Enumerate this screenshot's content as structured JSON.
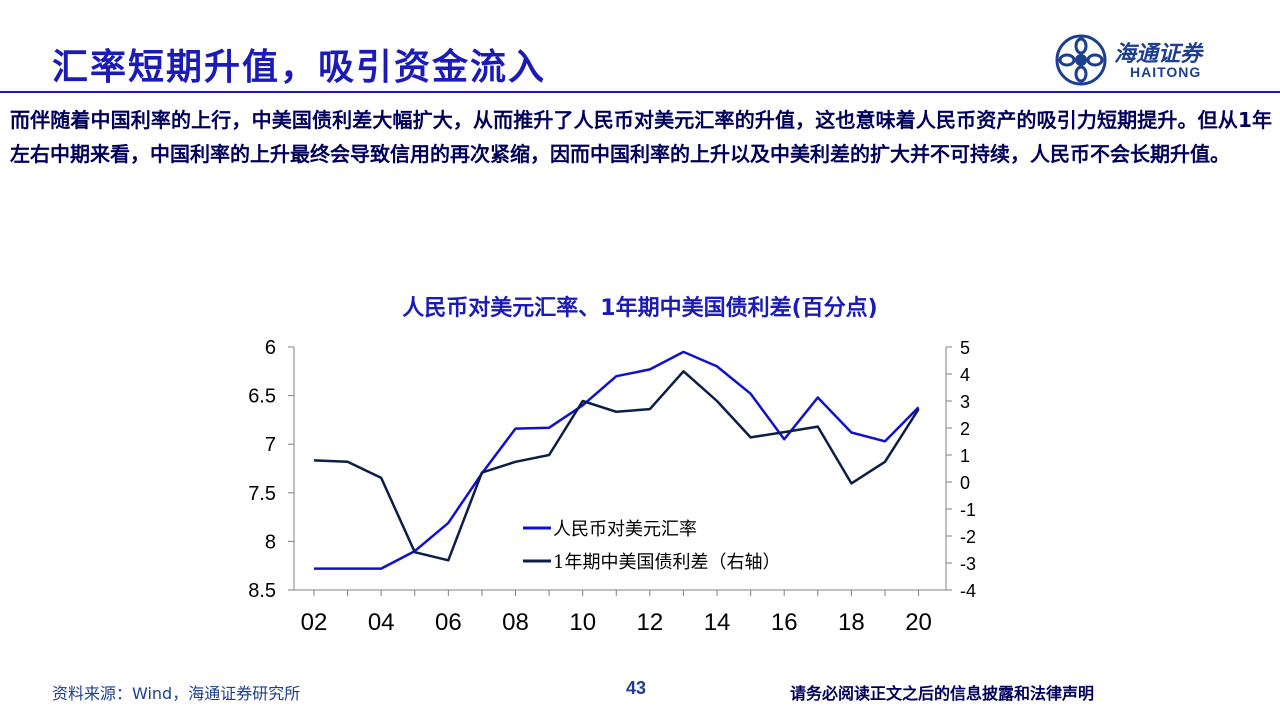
{
  "header": {
    "title": "汇率短期升值，吸引资金流入",
    "logo_cn": "海通证券",
    "logo_en": "HAITONG"
  },
  "body_text": "而伴随着中国利率的上行，中美国债利差大幅扩大，从而推升了人民币对美元汇率的升值，这也意味着人民币资产的吸引力短期提升。但从1年左右中期来看，中国利率的上升最终会导致信用的再次紧缩，因而中国利率的上升以及中美利差的扩大并不可持续，人民币不会长期升值。",
  "chart_data": {
    "type": "line",
    "title": "人民币对美元汇率、1年期中美国债利差(百分点)",
    "x_tick_labels": [
      "02",
      "04",
      "06",
      "08",
      "10",
      "12",
      "14",
      "16",
      "18",
      "20"
    ],
    "x_range": [
      2002,
      2020.4
    ],
    "y_left": {
      "range": [
        8.5,
        6
      ],
      "inverted": true,
      "ticks": [
        "6",
        "6.5",
        "7",
        "7.5",
        "8",
        "8.5"
      ]
    },
    "y_right": {
      "range": [
        -4,
        5
      ],
      "ticks": [
        "5",
        "4",
        "3",
        "2",
        "1",
        "0",
        "-1",
        "-2",
        "-3",
        "-4"
      ]
    },
    "grid": false,
    "legend_position": "bottom-right inside plot",
    "series": [
      {
        "name": "人民币对美元汇率",
        "axis": "left",
        "color": "#1010d0",
        "x": [
          2002,
          2003,
          2004,
          2005,
          2006,
          2007,
          2008,
          2009,
          2010,
          2011,
          2012,
          2013,
          2014,
          2015,
          2016,
          2017,
          2018,
          2019,
          2020
        ],
        "values": [
          8.28,
          8.28,
          8.28,
          8.1,
          7.81,
          7.3,
          6.84,
          6.83,
          6.6,
          6.3,
          6.23,
          6.05,
          6.2,
          6.48,
          6.95,
          6.52,
          6.88,
          6.97,
          6.62
        ]
      },
      {
        "name": "1年期中美国债利差（右轴）",
        "axis": "right",
        "color": "#0b1e45",
        "x": [
          2002,
          2003,
          2004,
          2005,
          2006,
          2007,
          2008,
          2009,
          2010,
          2011,
          2012,
          2013,
          2014,
          2015,
          2016,
          2017,
          2018,
          2019,
          2020
        ],
        "values": [
          0.8,
          0.75,
          0.15,
          -2.6,
          -2.9,
          0.35,
          0.75,
          1.0,
          3.0,
          2.6,
          2.7,
          4.1,
          3.0,
          1.65,
          1.85,
          2.05,
          -0.05,
          0.75,
          2.7
        ]
      }
    ]
  },
  "footer": {
    "source": "资料来源：Wind，海通证券研究所",
    "page_number": "43",
    "disclaimer": "请务必阅读正文之后的信息披露和法律声明"
  }
}
